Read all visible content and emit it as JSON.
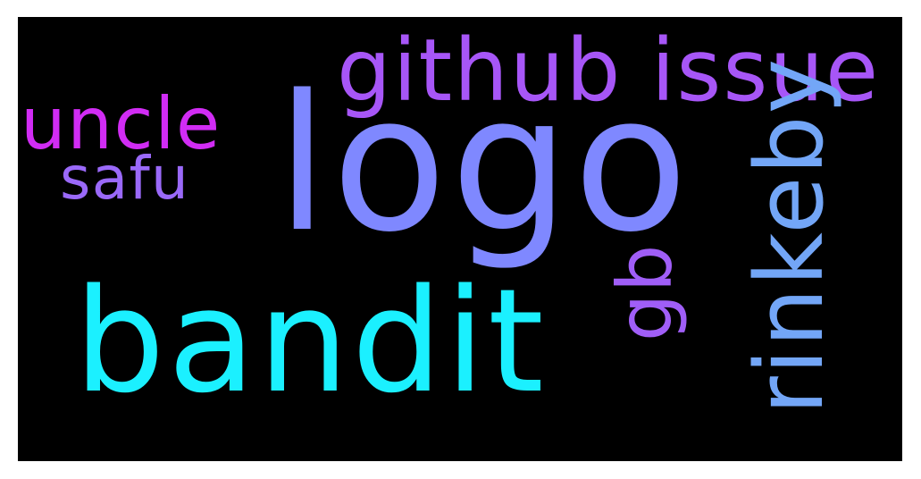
{
  "words": {
    "logo": {
      "text": "logo",
      "color": "#7f88ff"
    },
    "bandit": {
      "text": "bandit",
      "color": "#1bf0ff"
    },
    "github": {
      "text": "github issue",
      "color": "#a756f7"
    },
    "uncle": {
      "text": "uncle",
      "color": "#d12cf4"
    },
    "safu": {
      "text": "safu",
      "color": "#9a69f9"
    },
    "rinkeby": {
      "text": "rinkeby",
      "color": "#73a6f7"
    },
    "gb": {
      "text": "gb",
      "color": "#a05ef7"
    }
  },
  "colors": {
    "background": "#000000",
    "frame": "#ffffff"
  }
}
